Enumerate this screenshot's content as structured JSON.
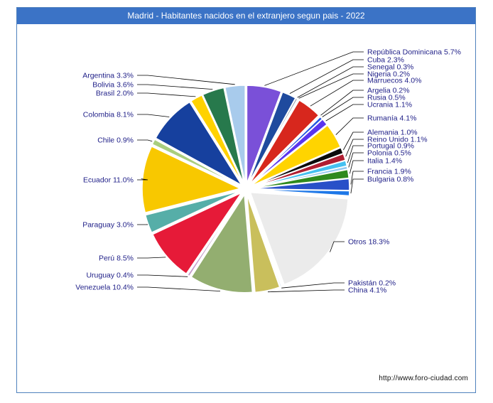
{
  "title_bar": {
    "text": "Madrid - Habitantes nacidos en el extranjero segun pais - 2022"
  },
  "footer": {
    "url_text": "http://www.foro-ciudad.com"
  },
  "theme": {
    "title_bar_bg": "#3B73C6",
    "title_bar_fg": "#FFFFFF",
    "border_color": "#4F81BD",
    "label_color": "#1E1E87",
    "leader_line_color": "#000000",
    "footer_color": "#111111",
    "slice_stroke": "#FFFFFF"
  },
  "chart_data": {
    "type": "pie",
    "title": "Madrid - Habitantes nacidos en el extranjero segun pais - 2022",
    "units": "%",
    "start_angle": "top",
    "direction": "clockwise",
    "exploded": true,
    "legend_position": "none",
    "label_format": "name value%",
    "slices": [
      {
        "label": "República Dominicana",
        "pct": 5.7,
        "color": "#7A50D8"
      },
      {
        "label": "Cuba",
        "pct": 2.3,
        "color": "#1F4A9E"
      },
      {
        "label": "Senegal",
        "pct": 0.3,
        "color": "#8E9BAB"
      },
      {
        "label": "Nigeria",
        "pct": 0.2,
        "color": "#D9DFE6"
      },
      {
        "label": "Marruecos",
        "pct": 4.0,
        "color": "#D7271D"
      },
      {
        "label": "Argelia",
        "pct": 0.2,
        "color": "#EDEFF2"
      },
      {
        "label": "Rusia",
        "pct": 0.5,
        "color": "#2356E0"
      },
      {
        "label": "Ucrania",
        "pct": 1.1,
        "color": "#5A35EE"
      },
      {
        "label": "Rumanía",
        "pct": 4.1,
        "color": "#FFD400"
      },
      {
        "label": "Alemania",
        "pct": 1.0,
        "color": "#0B0B0B"
      },
      {
        "label": "Reino Unido",
        "pct": 1.1,
        "color": "#B01E32"
      },
      {
        "label": "Portugal",
        "pct": 0.9,
        "color": "#45C0F0"
      },
      {
        "label": "Polonia",
        "pct": 0.5,
        "color": "#93C9F0"
      },
      {
        "label": "Italia",
        "pct": 1.4,
        "color": "#2F8A1E"
      },
      {
        "label": "Francia",
        "pct": 1.9,
        "color": "#2850C8"
      },
      {
        "label": "Bulgaria",
        "pct": 0.8,
        "color": "#1E78E8"
      },
      {
        "label": "Otros",
        "pct": 18.3,
        "color": "#EBEBEB"
      },
      {
        "label": "Pakistán",
        "pct": 0.2,
        "color": "#A8CAE8"
      },
      {
        "label": "China",
        "pct": 4.1,
        "color": "#C9BF5C"
      },
      {
        "label": "Venezuela",
        "pct": 10.4,
        "color": "#93AE70"
      },
      {
        "label": "Uruguay",
        "pct": 0.4,
        "color": "#C59CCB"
      },
      {
        "label": "Perú",
        "pct": 8.5,
        "color": "#E61A38"
      },
      {
        "label": "Paraguay",
        "pct": 3.0,
        "color": "#56AEA8"
      },
      {
        "label": "Ecuador",
        "pct": 11.0,
        "color": "#F8C800"
      },
      {
        "label": "Chile",
        "pct": 0.9,
        "color": "#A9CE7E"
      },
      {
        "label": "Colombia",
        "pct": 8.1,
        "color": "#16409E"
      },
      {
        "label": "Brasil",
        "pct": 2.0,
        "color": "#FFD200"
      },
      {
        "label": "Bolivia",
        "pct": 3.6,
        "color": "#27794C"
      },
      {
        "label": "Argentina",
        "pct": 3.3,
        "color": "#A8CBEC"
      }
    ]
  }
}
